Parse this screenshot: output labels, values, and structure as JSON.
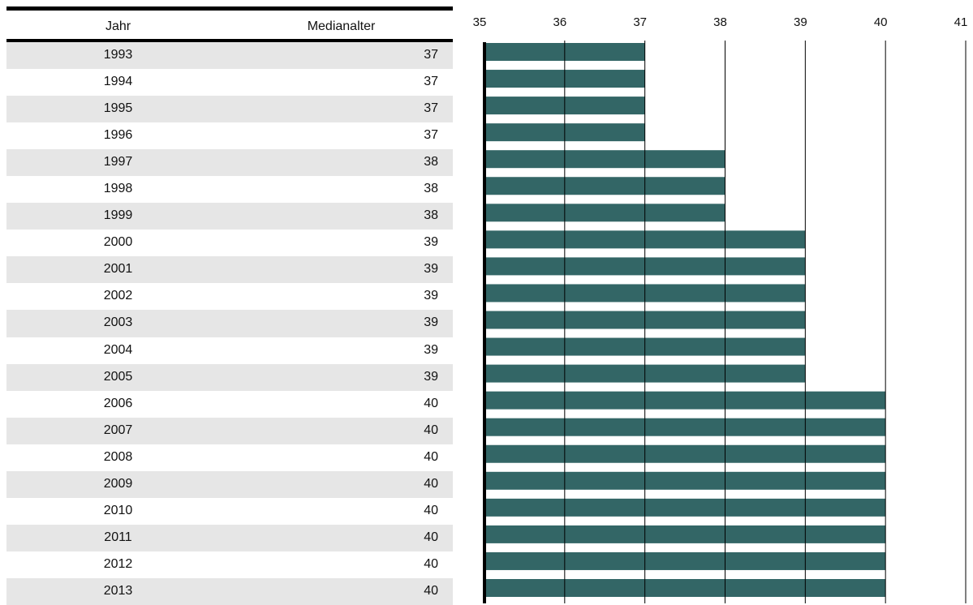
{
  "table": {
    "col_year": "Jahr",
    "col_value": "Medianalter"
  },
  "chart_data": {
    "type": "bar",
    "orientation": "horizontal",
    "categories": [
      "1993",
      "1994",
      "1995",
      "1996",
      "1997",
      "1998",
      "1999",
      "2000",
      "2001",
      "2002",
      "2003",
      "2004",
      "2005",
      "2006",
      "2007",
      "2008",
      "2009",
      "2010",
      "2011",
      "2012",
      "2013"
    ],
    "values": [
      37,
      37,
      37,
      37,
      38,
      38,
      38,
      39,
      39,
      39,
      39,
      39,
      39,
      40,
      40,
      40,
      40,
      40,
      40,
      40,
      40
    ],
    "xlim": [
      35,
      41
    ],
    "ticks": [
      "35",
      "36",
      "37",
      "38",
      "39",
      "40",
      "41"
    ],
    "grid": true,
    "colors": {
      "bar": "#336666",
      "grid": "#000000",
      "alt_row": "#e6e6e6"
    }
  }
}
